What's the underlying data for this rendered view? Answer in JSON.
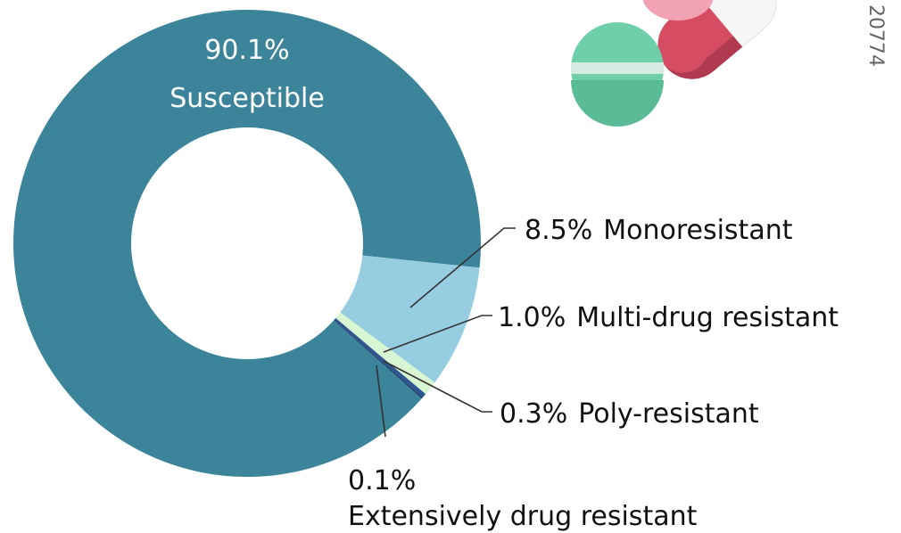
{
  "chart_data": {
    "type": "donut",
    "categories": [
      "Susceptible",
      "Monoresistant",
      "Multi-drug resistant",
      "Poly-resistant",
      "Extensively drug resistant"
    ],
    "values": [
      90.1,
      8.5,
      1.0,
      0.3,
      0.1
    ],
    "value_labels": [
      "90.1%",
      "8.5%",
      "1.0%",
      "0.3%",
      "0.1%"
    ],
    "colors": [
      "#3b8499",
      "#97cde0",
      "#d9f6d2",
      "#2f5690",
      "#1d3a6a"
    ]
  },
  "image_id": "20774"
}
